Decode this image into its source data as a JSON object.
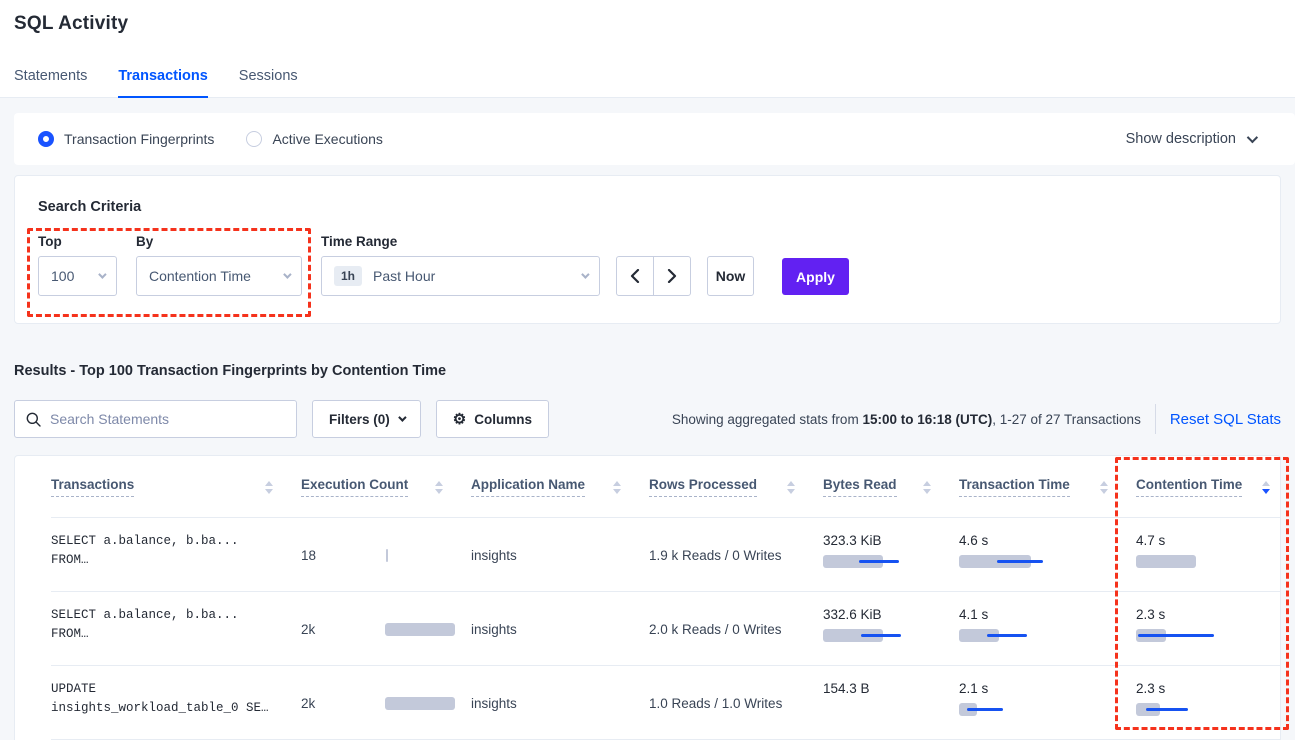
{
  "header": {
    "title": "SQL Activity",
    "tabs": [
      {
        "label": "Statements",
        "active": false
      },
      {
        "label": "Transactions",
        "active": true
      },
      {
        "label": "Sessions",
        "active": false
      }
    ]
  },
  "view_toggle": {
    "options": [
      {
        "label": "Transaction Fingerprints",
        "selected": true
      },
      {
        "label": "Active Executions",
        "selected": false
      }
    ],
    "show_description_label": "Show description"
  },
  "search_criteria": {
    "heading": "Search Criteria",
    "top_label": "Top",
    "top_value": "100",
    "by_label": "By",
    "by_value": "Contention Time",
    "time_range_label": "Time Range",
    "time_badge": "1h",
    "time_value": "Past Hour",
    "now_label": "Now",
    "apply_label": "Apply"
  },
  "results": {
    "heading": "Results - Top 100 Transaction Fingerprints by Contention Time",
    "search_placeholder": "Search Statements",
    "filters_label": "Filters (0)",
    "columns_label": "Columns",
    "showing_prefix": "Showing aggregated stats from ",
    "showing_bold": "15:00 to 16:18 (UTC)",
    "showing_suffix": ", 1-27 of 27 Transactions",
    "reset_label": "Reset SQL Stats"
  },
  "table": {
    "columns": [
      {
        "label": "Transactions",
        "sort": null
      },
      {
        "label": "Execution Count",
        "sort": null
      },
      {
        "label": "Application Name",
        "sort": null
      },
      {
        "label": "Rows Processed",
        "sort": null
      },
      {
        "label": "Bytes Read",
        "sort": null
      },
      {
        "label": "Transaction Time",
        "sort": null
      },
      {
        "label": "Contention Time",
        "sort": "desc"
      }
    ],
    "rows": [
      {
        "sql": [
          "SELECT a.balance, b.ba...",
          "FROM…"
        ],
        "execution_count": "18",
        "execution_bar": 2,
        "application": "insights",
        "rows_processed": "1.9 k Reads / 0 Writes",
        "bytes_read": {
          "text": "323.3 KiB",
          "bar": 60,
          "line": [
            36,
            40
          ]
        },
        "transaction_time": {
          "text": "4.6 s",
          "bar": 72,
          "line": [
            38,
            46
          ]
        },
        "contention_time": {
          "text": "4.7 s",
          "bar": 60,
          "line": null
        }
      },
      {
        "sql": [
          "SELECT a.balance, b.ba...",
          "FROM…"
        ],
        "execution_count": "2k",
        "execution_bar": 70,
        "application": "insights",
        "rows_processed": "2.0 k Reads / 0 Writes",
        "bytes_read": {
          "text": "332.6 KiB",
          "bar": 60,
          "line": [
            38,
            40
          ]
        },
        "transaction_time": {
          "text": "4.1 s",
          "bar": 40,
          "line": [
            28,
            40
          ]
        },
        "contention_time": {
          "text": "2.3 s",
          "bar": 30,
          "line": [
            2,
            76
          ]
        }
      },
      {
        "sql": [
          "UPDATE",
          "insights_workload_table_0 SE…"
        ],
        "execution_count": "2k",
        "execution_bar": 70,
        "application": "insights",
        "rows_processed": "1.0 Reads / 1.0 Writes",
        "bytes_read": {
          "text": "154.3 B",
          "bar": null,
          "line": null
        },
        "transaction_time": {
          "text": "2.1 s",
          "bar": 18,
          "line": [
            8,
            36
          ]
        },
        "contention_time": {
          "text": "2.3 s",
          "bar": 24,
          "line": [
            10,
            42
          ]
        }
      }
    ]
  },
  "colors": {
    "accent_blue": "#0055FF",
    "bar_blue": "#1652F1",
    "bar_gray": "#C3C9DA",
    "apply_purple": "#6221F2",
    "annotation_red": "#F5321C"
  }
}
